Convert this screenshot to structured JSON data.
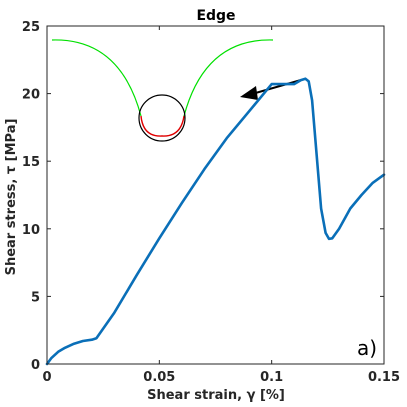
{
  "chart_data": {
    "type": "line",
    "title": "Edge",
    "xlabel": "Shear strain, γ [%]",
    "ylabel": "Shear stress, τ [MPa]",
    "xlim": [
      0,
      0.15
    ],
    "ylim": [
      0,
      25
    ],
    "xticks": [
      "0",
      "0.05",
      "0.1",
      "0.15"
    ],
    "yticks": [
      "0",
      "5",
      "10",
      "15",
      "20",
      "25"
    ],
    "grid": false,
    "panel_label": "a)",
    "series": [
      {
        "color": "#0a6fb8",
        "x": [
          0,
          0.002,
          0.005,
          0.008,
          0.012,
          0.016,
          0.02,
          0.022,
          0.03,
          0.04,
          0.05,
          0.06,
          0.07,
          0.08,
          0.09,
          0.1,
          0.11,
          0.113,
          0.115,
          0.1165,
          0.118,
          0.12,
          0.122,
          0.124,
          0.1255,
          0.127,
          0.13,
          0.135,
          0.14,
          0.145,
          0.15
        ],
        "y": [
          0,
          0.45,
          0.9,
          1.2,
          1.5,
          1.7,
          1.8,
          1.9,
          3.8,
          6.6,
          9.3,
          11.9,
          14.4,
          16.7,
          18.7,
          20.7,
          20.7,
          21.0,
          21.1,
          20.9,
          19.5,
          15.5,
          11.5,
          9.7,
          9.25,
          9.3,
          10.0,
          11.5,
          12.5,
          13.4,
          14.0
        ]
      }
    ],
    "inset": {
      "description_colors": {
        "outer": "#00e000",
        "inner": "#e00000",
        "circle": "#000000"
      },
      "arrow_color": "#000000"
    }
  }
}
